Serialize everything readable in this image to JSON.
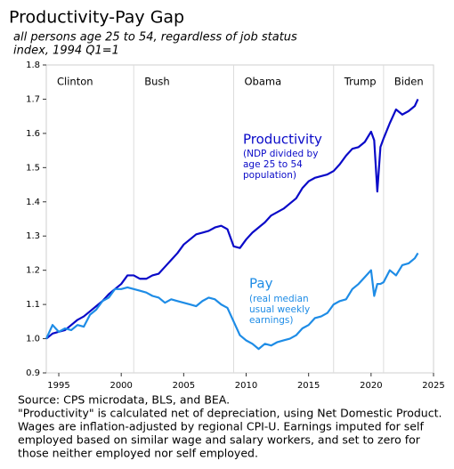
{
  "chart_data": {
    "type": "line",
    "title": "Productivity-Pay Gap",
    "subtitle": [
      "all persons age 25 to 54, regardless of job status",
      "index, 1994 Q1=1"
    ],
    "footer": [
      "Source: CPS microdata, BLS, and BEA.",
      "\"Productivity\" is calculated net of depreciation, using Net Domestic Product.",
      "Wages are inflation-adjusted by regional CPI-U. Earnings imputed for self",
      "employed based on similar wage and salary workers, and set to zero for",
      "those neither employed nor self employed."
    ],
    "eras": [
      {
        "name": "Clinton",
        "start": 1994
      },
      {
        "name": "Bush",
        "start": 2001
      },
      {
        "name": "Obama",
        "start": 2009
      },
      {
        "name": "Trump",
        "start": 2017
      },
      {
        "name": "Biden",
        "start": 2021
      }
    ],
    "x": [
      1994,
      1994.5,
      1995,
      1995.5,
      1996,
      1996.5,
      1997,
      1997.5,
      1998,
      1998.5,
      1999,
      1999.5,
      2000,
      2000.5,
      2001,
      2001.5,
      2002,
      2002.5,
      2003,
      2003.5,
      2004,
      2004.5,
      2005,
      2005.5,
      2006,
      2006.5,
      2007,
      2007.5,
      2008,
      2008.5,
      2009,
      2009.5,
      2010,
      2010.5,
      2011,
      2011.5,
      2012,
      2012.5,
      2013,
      2013.5,
      2014,
      2014.5,
      2015,
      2015.5,
      2016,
      2016.5,
      2017,
      2017.5,
      2018,
      2018.5,
      2019,
      2019.5,
      2020,
      2020.25,
      2020.5,
      2020.75,
      2021,
      2021.5,
      2022,
      2022.5,
      2023,
      2023.5,
      2023.75
    ],
    "series": [
      {
        "name": "Productivity",
        "color": "#0a0ac8",
        "note": [
          "(NDP divided by",
          "age 25 to 54",
          "population)"
        ],
        "values": [
          1.0,
          1.015,
          1.02,
          1.025,
          1.04,
          1.055,
          1.065,
          1.08,
          1.095,
          1.11,
          1.13,
          1.145,
          1.16,
          1.185,
          1.185,
          1.175,
          1.175,
          1.185,
          1.19,
          1.21,
          1.23,
          1.25,
          1.275,
          1.29,
          1.305,
          1.31,
          1.315,
          1.325,
          1.33,
          1.32,
          1.27,
          1.265,
          1.29,
          1.31,
          1.325,
          1.34,
          1.36,
          1.37,
          1.38,
          1.395,
          1.41,
          1.44,
          1.46,
          1.47,
          1.475,
          1.48,
          1.49,
          1.51,
          1.535,
          1.555,
          1.56,
          1.575,
          1.605,
          1.58,
          1.43,
          1.56,
          1.585,
          1.63,
          1.67,
          1.655,
          1.665,
          1.68,
          1.7
        ]
      },
      {
        "name": "Pay",
        "color": "#1e8ce6",
        "note": [
          "(real median",
          "usual weekly",
          "earnings)"
        ],
        "values": [
          1.0,
          1.04,
          1.02,
          1.03,
          1.025,
          1.04,
          1.035,
          1.07,
          1.085,
          1.11,
          1.12,
          1.145,
          1.145,
          1.15,
          1.145,
          1.14,
          1.135,
          1.125,
          1.12,
          1.105,
          1.115,
          1.11,
          1.105,
          1.1,
          1.095,
          1.11,
          1.12,
          1.115,
          1.1,
          1.09,
          1.05,
          1.01,
          0.995,
          0.985,
          0.97,
          0.985,
          0.98,
          0.99,
          0.995,
          1.0,
          1.01,
          1.03,
          1.04,
          1.06,
          1.065,
          1.075,
          1.1,
          1.11,
          1.115,
          1.145,
          1.16,
          1.18,
          1.2,
          1.125,
          1.16,
          1.16,
          1.165,
          1.2,
          1.185,
          1.215,
          1.22,
          1.235,
          1.25
        ]
      }
    ],
    "xlim": [
      1994,
      2025
    ],
    "xticks": [
      1995,
      2000,
      2005,
      2010,
      2015,
      2020,
      2025
    ],
    "ylim": [
      0.9,
      1.8
    ],
    "yticks": [
      0.9,
      {
        "value": 1,
        "label": "1.0"
      },
      1.1,
      1.2,
      1.3,
      1.4,
      1.5,
      1.6,
      1.7,
      1.8
    ]
  }
}
